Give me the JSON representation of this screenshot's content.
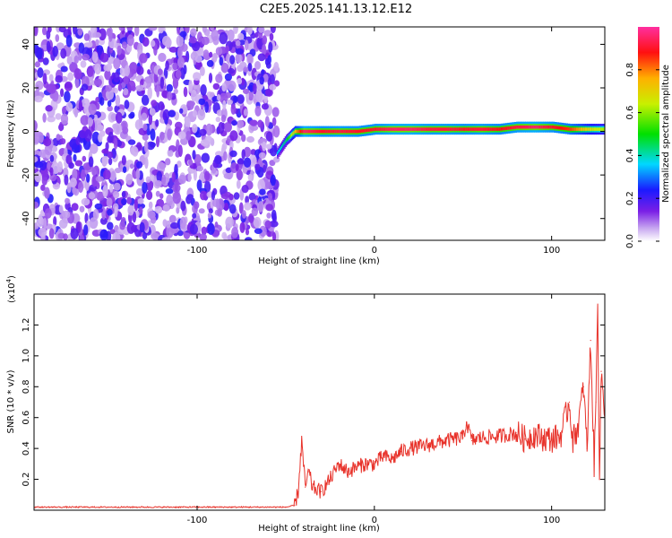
{
  "title": "C2E5.2025.141.13.12.E12",
  "chart_data": [
    {
      "type": "heatmap",
      "xlabel": "Height of straight line (km)",
      "ylabel": "Frequency (Hz)",
      "xlim": [
        -192,
        130
      ],
      "ylim": [
        -50,
        48
      ],
      "xticks": [
        -100,
        0,
        100
      ],
      "yticks": [
        -40,
        -20,
        0,
        20,
        40
      ],
      "xticklabels": [
        "-100",
        "0",
        "100"
      ],
      "yticklabels": [
        "-40",
        "-20",
        "0",
        "20",
        "40"
      ],
      "noise_region_x": [
        -192,
        -55
      ],
      "signal_track": {
        "x": [
          -55,
          -50,
          -45,
          -40,
          -30,
          -20,
          -10,
          0,
          10,
          20,
          30,
          40,
          50,
          60,
          70,
          80,
          90,
          100,
          110,
          120,
          130
        ],
        "frequency": [
          -10,
          -4,
          0,
          0,
          0,
          0,
          0,
          1,
          1,
          1,
          1,
          1,
          1,
          1,
          1,
          2,
          2,
          2,
          1,
          1,
          1
        ],
        "amplitude": [
          0.35,
          0.45,
          0.75,
          0.95,
          0.9,
          0.92,
          0.9,
          0.9,
          0.95,
          0.95,
          0.92,
          0.92,
          0.9,
          0.92,
          0.88,
          0.92,
          0.95,
          0.9,
          0.85,
          0.7,
          0.6
        ]
      },
      "colorbar": {
        "label": "Normalized spectral amplitude",
        "range": [
          0,
          1
        ],
        "ticks": [
          "0.0",
          "0.2",
          "0.4",
          "0.6",
          "0.8"
        ],
        "colormap": "white-purple-blue-cyan-green-yellow-orange-red-pink"
      }
    },
    {
      "type": "line",
      "xlabel": "Height of straight line (km)",
      "ylabel": "SNR (10 * v/v)",
      "multiplier_label": "(x10",
      "multiplier_exp": "4",
      "multiplier_close": ")",
      "xlim": [
        -192,
        130
      ],
      "ylim": [
        0,
        1.4
      ],
      "xticks": [
        -100,
        0,
        100
      ],
      "yticks": [
        0.2,
        0.4,
        0.6,
        0.8,
        1.0,
        1.2
      ],
      "xticklabels": [
        "-100",
        "0",
        "100"
      ],
      "yticklabels": [
        "0.2",
        "0.4",
        "0.6",
        "0.8",
        "1.0",
        "1.2"
      ],
      "series": [
        {
          "color": "#e8322a",
          "x": [
            -192,
            -100,
            -50,
            -45,
            -43,
            -41,
            -39,
            -37,
            -35,
            -30,
            -25,
            -20,
            -15,
            -10,
            -5,
            0,
            5,
            10,
            15,
            20,
            30,
            40,
            50,
            52,
            55,
            60,
            70,
            80,
            85,
            90,
            95,
            100,
            105,
            110,
            112,
            115,
            118,
            120,
            122,
            124,
            125,
            126,
            127,
            128,
            130
          ],
          "y": [
            0.02,
            0.02,
            0.02,
            0.03,
            0.12,
            0.45,
            0.15,
            0.25,
            0.15,
            0.12,
            0.2,
            0.3,
            0.25,
            0.28,
            0.3,
            0.3,
            0.35,
            0.33,
            0.38,
            0.4,
            0.42,
            0.45,
            0.47,
            0.57,
            0.45,
            0.47,
            0.48,
            0.5,
            0.46,
            0.49,
            0.47,
            0.46,
            0.48,
            0.7,
            0.45,
            0.55,
            0.8,
            0.4,
            1.1,
            0.3,
            0.7,
            1.4,
            0.2,
            0.9,
            0.6
          ]
        }
      ]
    }
  ]
}
